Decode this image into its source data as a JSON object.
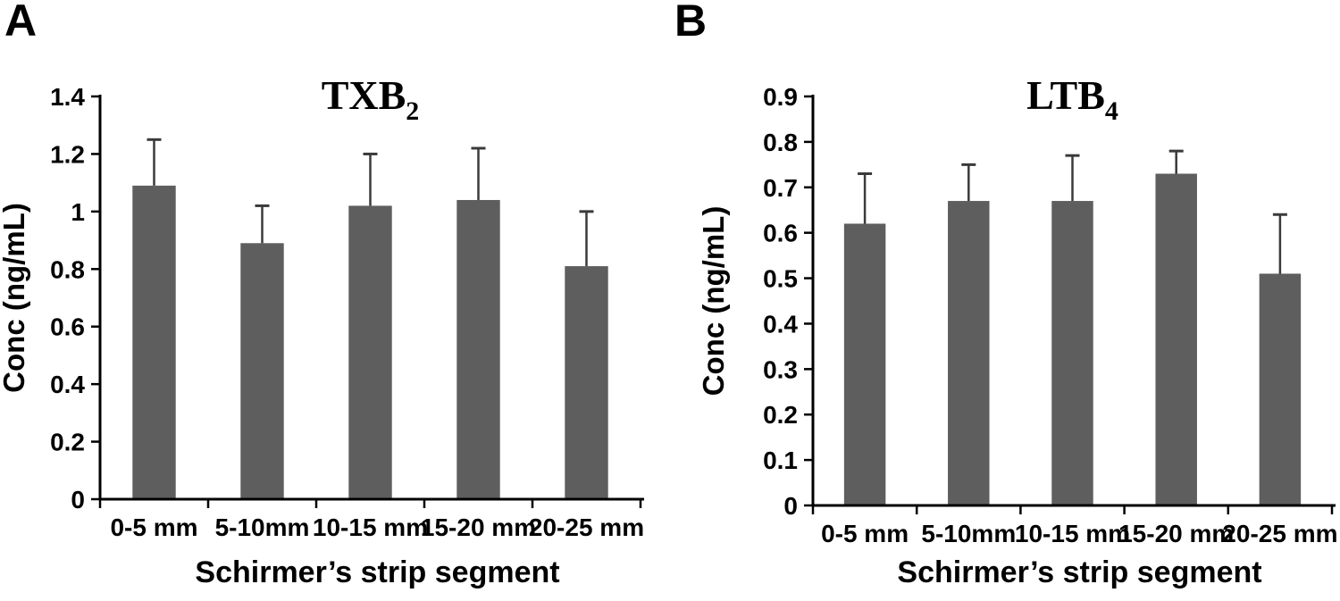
{
  "figure": {
    "background": "#ffffff",
    "panel_labels": [
      "A",
      "B"
    ]
  },
  "chart_data": [
    {
      "type": "bar",
      "panel_label": "A",
      "title": "TXB2",
      "title_main": "TXB",
      "title_subscript": "2",
      "xlabel": "Schirmer’s strip segment",
      "ylabel": "Conc (ng/mL)",
      "categories": [
        "0-5 mm",
        "5-10mm",
        "10-15 mm",
        "15-20 mm",
        "20-25 mm"
      ],
      "values": [
        1.09,
        0.89,
        1.02,
        1.04,
        0.81
      ],
      "error_upper": [
        0.16,
        0.13,
        0.18,
        0.18,
        0.19
      ],
      "ylim": [
        0,
        1.4
      ],
      "ytick_labels": [
        "0",
        "0.2",
        "0.4",
        "0.6",
        "0.8",
        "1",
        "1.2",
        "1.4"
      ],
      "grid": false,
      "legend": "none",
      "bar_color": "#5e5e5e",
      "error_color": "#3a3a3a",
      "axis_color": "#000000"
    },
    {
      "type": "bar",
      "panel_label": "B",
      "title": "LTB4",
      "title_main": "LTB",
      "title_subscript": "4",
      "xlabel": "Schirmer’s strip segment",
      "ylabel": "Conc (ng/mL)",
      "categories": [
        "0-5 mm",
        "5-10mm",
        "10-15 mm",
        "15-20 mm",
        "20-25 mm"
      ],
      "values": [
        0.62,
        0.67,
        0.67,
        0.73,
        0.51
      ],
      "error_upper": [
        0.11,
        0.08,
        0.1,
        0.05,
        0.13
      ],
      "ylim": [
        0,
        0.9
      ],
      "ytick_labels": [
        "0",
        "0.1",
        "0.2",
        "0.3",
        "0.4",
        "0.5",
        "0.6",
        "0.7",
        "0.8",
        "0.9"
      ],
      "grid": false,
      "legend": "none",
      "bar_color": "#5e5e5e",
      "error_color": "#3a3a3a",
      "axis_color": "#000000"
    }
  ]
}
